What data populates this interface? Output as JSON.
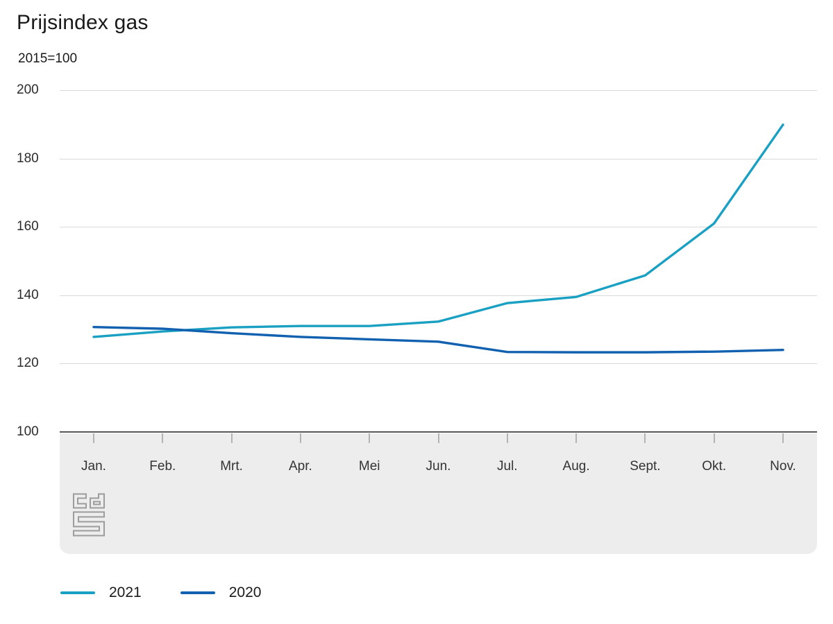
{
  "title": "Prijsindex gas",
  "subtitle": "2015=100",
  "colors": {
    "grid": "#d9d9d9",
    "axis": "#565656",
    "plot_footer_bg": "#ededed",
    "tick": "#b3b3b3",
    "logo": "#9c9c9c",
    "series_2021": "#19a0c3",
    "series_2020": "#1161b0"
  },
  "legend": {
    "items": [
      {
        "label": "2021",
        "color": "#19a0c3"
      },
      {
        "label": "2020",
        "color": "#1161b0"
      }
    ]
  },
  "chart_data": {
    "type": "line",
    "title": "Prijsindex gas",
    "subtitle": "2015=100",
    "categories": [
      "Jan.",
      "Feb.",
      "Mrt.",
      "Apr.",
      "Mei",
      "Jun.",
      "Jul.",
      "Aug.",
      "Sept.",
      "Okt.",
      "Nov."
    ],
    "y_ticks": [
      100,
      120,
      140,
      160,
      180,
      200
    ],
    "ylim": [
      100,
      200
    ],
    "grid": "horizontal-only",
    "legend_position": "bottom-left",
    "series": [
      {
        "name": "2021",
        "color": "#19a0c3",
        "values": [
          127.8,
          129.4,
          130.6,
          131.0,
          131.0,
          132.3,
          137.7,
          139.5,
          145.8,
          161.0,
          189.9
        ]
      },
      {
        "name": "2020",
        "color": "#1161b0",
        "values": [
          130.7,
          130.2,
          128.9,
          127.8,
          127.1,
          126.4,
          123.4,
          123.3,
          123.3,
          123.5,
          124.0
        ]
      }
    ]
  }
}
